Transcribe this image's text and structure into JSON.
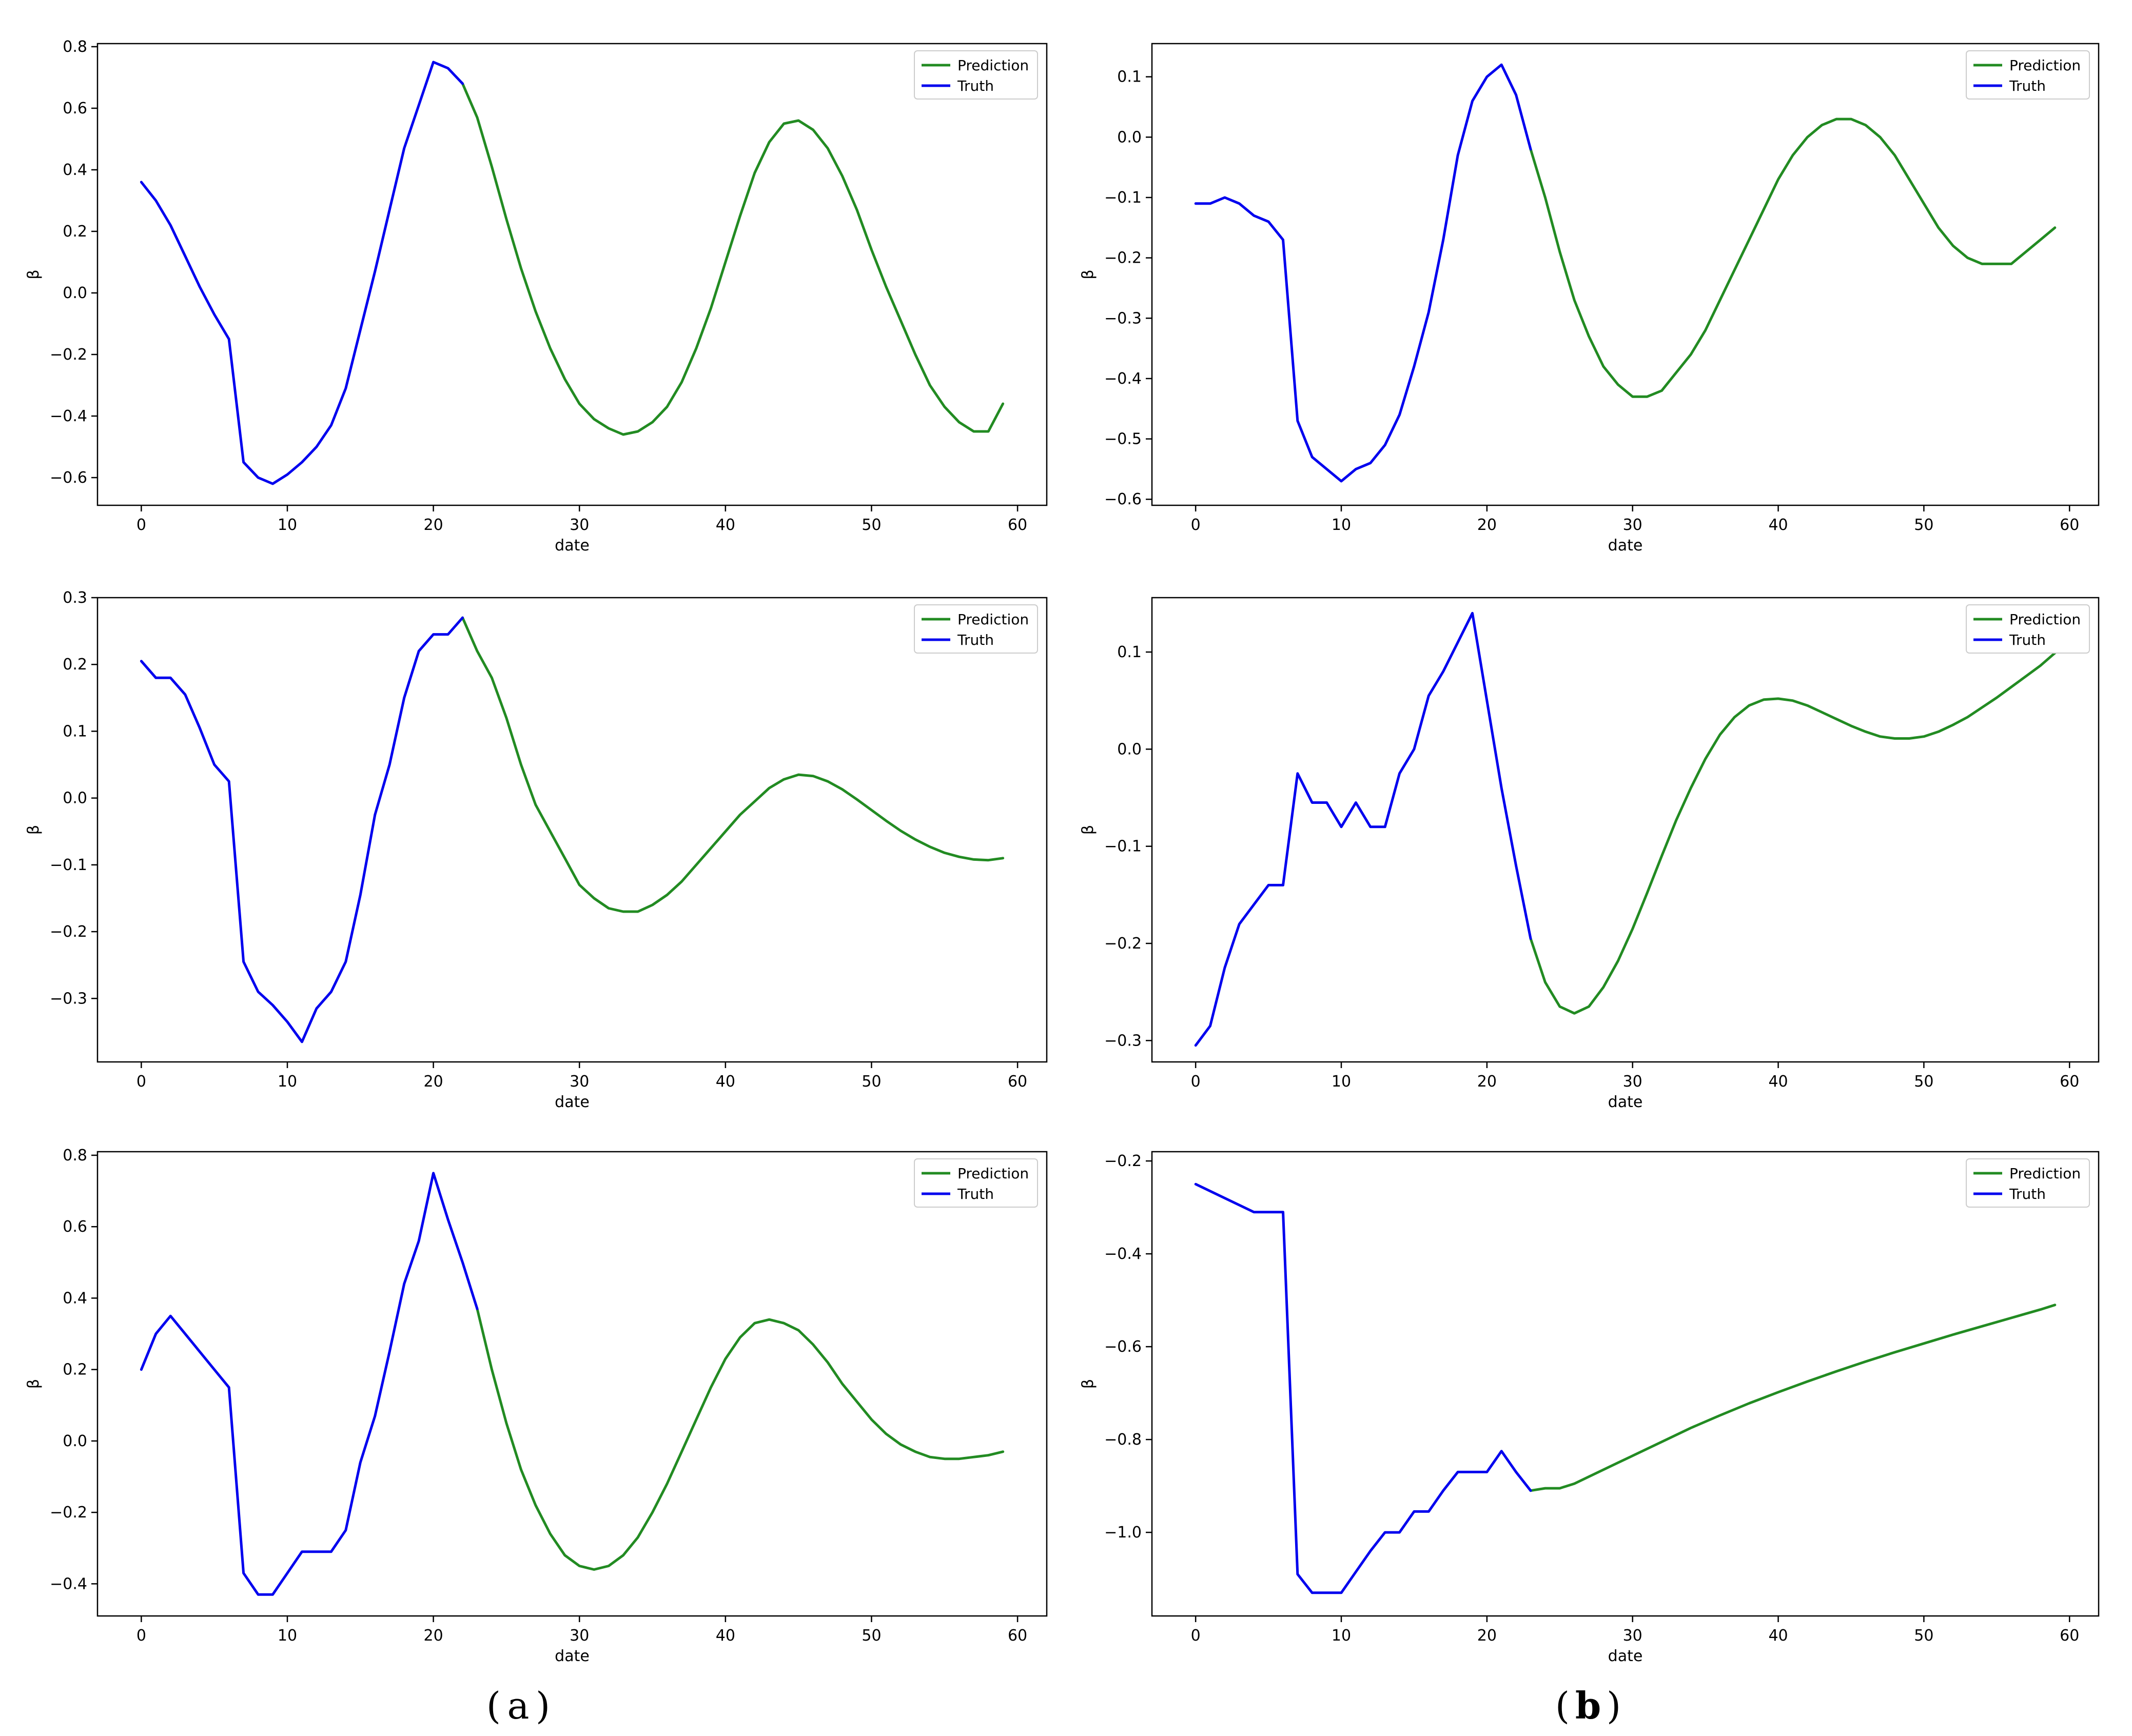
{
  "figure_labels": {
    "a": "a",
    "b": "b"
  },
  "colors": {
    "prediction": "#228b22",
    "truth": "#0000ee",
    "axis": "#000000",
    "background": "#ffffff"
  },
  "chart_data": [
    {
      "type": "line",
      "column": "a",
      "row": 0,
      "xlabel": "date",
      "ylabel": "β",
      "xlim": [
        -3,
        62
      ],
      "ylim": [
        -0.69,
        0.81
      ],
      "xticks": [
        0,
        10,
        20,
        30,
        40,
        50,
        60
      ],
      "xtick_labels": [
        "0",
        "10",
        "20",
        "30",
        "40",
        "50",
        "60"
      ],
      "yticks": [
        -0.6,
        -0.4,
        -0.2,
        0.0,
        0.2,
        0.4,
        0.6,
        0.8
      ],
      "ytick_labels": [
        "−0.6",
        "−0.4",
        "−0.2",
        "0.0",
        "0.2",
        "0.4",
        "0.6",
        "0.8"
      ],
      "legend": "top-right",
      "series": [
        {
          "name": "Prediction",
          "color": "#228b22",
          "x": [
            22,
            23,
            24,
            25,
            26,
            27,
            28,
            29,
            30,
            31,
            32,
            33,
            34,
            35,
            36,
            37,
            38,
            39,
            40,
            41,
            42,
            43,
            44,
            45,
            46,
            47,
            48,
            49,
            50,
            51,
            52,
            53,
            54,
            55,
            56,
            57,
            58,
            59
          ],
          "y": [
            0.68,
            0.57,
            0.41,
            0.24,
            0.08,
            -0.06,
            -0.18,
            -0.28,
            -0.36,
            -0.41,
            -0.44,
            -0.46,
            -0.45,
            -0.42,
            -0.37,
            -0.29,
            -0.18,
            -0.05,
            0.1,
            0.25,
            0.39,
            0.49,
            0.55,
            0.56,
            0.53,
            0.47,
            0.38,
            0.27,
            0.14,
            0.02,
            -0.09,
            -0.2,
            -0.3,
            -0.37,
            -0.42,
            -0.45,
            -0.45,
            -0.36
          ]
        },
        {
          "name": "Truth",
          "color": "#0000ee",
          "x": [
            0,
            1,
            2,
            3,
            4,
            5,
            6,
            7,
            8,
            9,
            10,
            11,
            12,
            13,
            14,
            15,
            16,
            17,
            18,
            19,
            20,
            21,
            22
          ],
          "y": [
            0.36,
            0.3,
            0.22,
            0.12,
            0.02,
            -0.07,
            -0.15,
            -0.55,
            -0.6,
            -0.62,
            -0.59,
            -0.55,
            -0.5,
            -0.43,
            -0.31,
            -0.12,
            0.07,
            0.27,
            0.47,
            0.61,
            0.75,
            0.73,
            0.68
          ]
        }
      ]
    },
    {
      "type": "line",
      "column": "b",
      "row": 0,
      "xlabel": "date",
      "ylabel": "β",
      "xlim": [
        -3,
        62
      ],
      "ylim": [
        -0.61,
        0.155
      ],
      "xticks": [
        0,
        10,
        20,
        30,
        40,
        50,
        60
      ],
      "xtick_labels": [
        "0",
        "10",
        "20",
        "30",
        "40",
        "50",
        "60"
      ],
      "yticks": [
        -0.6,
        -0.5,
        -0.4,
        -0.3,
        -0.2,
        -0.1,
        0.0,
        0.1
      ],
      "ytick_labels": [
        "−0.6",
        "−0.5",
        "−0.4",
        "−0.3",
        "−0.2",
        "−0.1",
        "0.0",
        "0.1"
      ],
      "legend": "top-right",
      "series": [
        {
          "name": "Prediction",
          "color": "#228b22",
          "x": [
            23,
            24,
            25,
            26,
            27,
            28,
            29,
            30,
            31,
            32,
            33,
            34,
            35,
            36,
            37,
            38,
            39,
            40,
            41,
            42,
            43,
            44,
            45,
            46,
            47,
            48,
            49,
            50,
            51,
            52,
            53,
            54,
            55,
            56,
            57,
            58,
            59
          ],
          "y": [
            -0.02,
            -0.1,
            -0.19,
            -0.27,
            -0.33,
            -0.38,
            -0.41,
            -0.43,
            -0.43,
            -0.42,
            -0.39,
            -0.36,
            -0.32,
            -0.27,
            -0.22,
            -0.17,
            -0.12,
            -0.07,
            -0.03,
            0.0,
            0.02,
            0.03,
            0.03,
            0.02,
            0.0,
            -0.03,
            -0.07,
            -0.11,
            -0.15,
            -0.18,
            -0.2,
            -0.21,
            -0.21,
            -0.21,
            -0.19,
            -0.17,
            -0.15
          ]
        },
        {
          "name": "Truth",
          "color": "#0000ee",
          "x": [
            0,
            1,
            2,
            3,
            4,
            5,
            6,
            7,
            8,
            9,
            10,
            11,
            12,
            13,
            14,
            15,
            16,
            17,
            18,
            19,
            20,
            21,
            22,
            23
          ],
          "y": [
            -0.11,
            -0.11,
            -0.1,
            -0.11,
            -0.13,
            -0.14,
            -0.17,
            -0.47,
            -0.53,
            -0.55,
            -0.57,
            -0.55,
            -0.54,
            -0.51,
            -0.46,
            -0.38,
            -0.29,
            -0.17,
            -0.03,
            0.06,
            0.1,
            0.12,
            0.07,
            -0.02
          ]
        }
      ]
    },
    {
      "type": "line",
      "column": "a",
      "row": 1,
      "xlabel": "date",
      "ylabel": "β",
      "xlim": [
        -3,
        62
      ],
      "ylim": [
        -0.395,
        0.3
      ],
      "xticks": [
        0,
        10,
        20,
        30,
        40,
        50,
        60
      ],
      "xtick_labels": [
        "0",
        "10",
        "20",
        "30",
        "40",
        "50",
        "60"
      ],
      "yticks": [
        -0.3,
        -0.2,
        -0.1,
        0.0,
        0.1,
        0.2,
        0.3
      ],
      "ytick_labels": [
        "−0.3",
        "−0.2",
        "−0.1",
        "0.0",
        "0.1",
        "0.2",
        "0.3"
      ],
      "legend": "top-right",
      "series": [
        {
          "name": "Prediction",
          "color": "#228b22",
          "x": [
            22,
            23,
            24,
            25,
            26,
            27,
            28,
            29,
            30,
            31,
            32,
            33,
            34,
            35,
            36,
            37,
            38,
            39,
            40,
            41,
            42,
            43,
            44,
            45,
            46,
            47,
            48,
            49,
            50,
            51,
            52,
            53,
            54,
            55,
            56,
            57,
            58,
            59
          ],
          "y": [
            0.27,
            0.22,
            0.18,
            0.12,
            0.05,
            -0.01,
            -0.05,
            -0.09,
            -0.13,
            -0.15,
            -0.165,
            -0.17,
            -0.17,
            -0.16,
            -0.145,
            -0.125,
            -0.1,
            -0.075,
            -0.05,
            -0.025,
            -0.005,
            0.015,
            0.028,
            0.035,
            0.033,
            0.025,
            0.013,
            -0.002,
            -0.018,
            -0.034,
            -0.049,
            -0.062,
            -0.073,
            -0.082,
            -0.088,
            -0.092,
            -0.093,
            -0.09
          ]
        },
        {
          "name": "Truth",
          "color": "#0000ee",
          "x": [
            0,
            1,
            2,
            3,
            4,
            5,
            6,
            7,
            8,
            9,
            10,
            11,
            12,
            13,
            14,
            15,
            16,
            17,
            18,
            19,
            20,
            21,
            22
          ],
          "y": [
            0.205,
            0.18,
            0.18,
            0.155,
            0.105,
            0.05,
            0.025,
            -0.245,
            -0.29,
            -0.31,
            -0.335,
            -0.365,
            -0.315,
            -0.29,
            -0.245,
            -0.145,
            -0.025,
            0.05,
            0.15,
            0.22,
            0.245,
            0.245,
            0.27
          ]
        }
      ]
    },
    {
      "type": "line",
      "column": "b",
      "row": 1,
      "xlabel": "date",
      "ylabel": "β",
      "xlim": [
        -3,
        62
      ],
      "ylim": [
        -0.322,
        0.156
      ],
      "xticks": [
        0,
        10,
        20,
        30,
        40,
        50,
        60
      ],
      "xtick_labels": [
        "0",
        "10",
        "20",
        "30",
        "40",
        "50",
        "60"
      ],
      "yticks": [
        -0.3,
        -0.2,
        -0.1,
        0.0,
        0.1
      ],
      "ytick_labels": [
        "−0.3",
        "−0.2",
        "−0.1",
        "0.0",
        "0.1"
      ],
      "legend": "top-right",
      "series": [
        {
          "name": "Prediction",
          "color": "#228b22",
          "x": [
            23,
            24,
            25,
            26,
            27,
            28,
            29,
            30,
            31,
            32,
            33,
            34,
            35,
            36,
            37,
            38,
            39,
            40,
            41,
            42,
            43,
            44,
            45,
            46,
            47,
            48,
            49,
            50,
            51,
            52,
            53,
            54,
            55,
            56,
            57,
            58,
            59
          ],
          "y": [
            -0.195,
            -0.24,
            -0.265,
            -0.272,
            -0.265,
            -0.245,
            -0.218,
            -0.185,
            -0.148,
            -0.11,
            -0.073,
            -0.04,
            -0.01,
            0.015,
            0.033,
            0.045,
            0.051,
            0.052,
            0.05,
            0.045,
            0.038,
            0.031,
            0.024,
            0.018,
            0.013,
            0.011,
            0.011,
            0.013,
            0.018,
            0.025,
            0.033,
            0.043,
            0.053,
            0.064,
            0.075,
            0.086,
            0.099
          ]
        },
        {
          "name": "Truth",
          "color": "#0000ee",
          "x": [
            0,
            1,
            2,
            3,
            4,
            5,
            6,
            7,
            8,
            9,
            10,
            11,
            12,
            13,
            14,
            15,
            16,
            17,
            18,
            19,
            20,
            21,
            22,
            23
          ],
          "y": [
            -0.305,
            -0.285,
            -0.225,
            -0.18,
            -0.16,
            -0.14,
            -0.14,
            -0.025,
            -0.055,
            -0.055,
            -0.08,
            -0.055,
            -0.08,
            -0.08,
            -0.025,
            0.0,
            0.055,
            0.08,
            0.11,
            0.14,
            0.05,
            -0.04,
            -0.12,
            -0.195
          ]
        }
      ]
    },
    {
      "type": "line",
      "column": "a",
      "row": 2,
      "xlabel": "date",
      "ylabel": "β",
      "xlim": [
        -3,
        62
      ],
      "ylim": [
        -0.49,
        0.81
      ],
      "xticks": [
        0,
        10,
        20,
        30,
        40,
        50,
        60
      ],
      "xtick_labels": [
        "0",
        "10",
        "20",
        "30",
        "40",
        "50",
        "60"
      ],
      "yticks": [
        -0.4,
        -0.2,
        0.0,
        0.2,
        0.4,
        0.6,
        0.8
      ],
      "ytick_labels": [
        "−0.4",
        "−0.2",
        "0.0",
        "0.2",
        "0.4",
        "0.6",
        "0.8"
      ],
      "legend": "top-right",
      "series": [
        {
          "name": "Prediction",
          "color": "#228b22",
          "x": [
            23,
            24,
            25,
            26,
            27,
            28,
            29,
            30,
            31,
            32,
            33,
            34,
            35,
            36,
            37,
            38,
            39,
            40,
            41,
            42,
            43,
            44,
            45,
            46,
            47,
            48,
            49,
            50,
            51,
            52,
            53,
            54,
            55,
            56,
            57,
            58,
            59
          ],
          "y": [
            0.37,
            0.2,
            0.05,
            -0.08,
            -0.18,
            -0.26,
            -0.32,
            -0.35,
            -0.36,
            -0.35,
            -0.32,
            -0.27,
            -0.2,
            -0.12,
            -0.03,
            0.06,
            0.15,
            0.23,
            0.29,
            0.33,
            0.34,
            0.33,
            0.31,
            0.27,
            0.22,
            0.16,
            0.11,
            0.06,
            0.02,
            -0.01,
            -0.03,
            -0.045,
            -0.05,
            -0.05,
            -0.045,
            -0.04,
            -0.03
          ]
        },
        {
          "name": "Truth",
          "color": "#0000ee",
          "x": [
            0,
            1,
            2,
            3,
            4,
            5,
            6,
            7,
            8,
            9,
            10,
            11,
            12,
            13,
            14,
            15,
            16,
            17,
            18,
            19,
            20,
            21,
            22,
            23
          ],
          "y": [
            0.2,
            0.3,
            0.35,
            0.3,
            0.25,
            0.2,
            0.15,
            -0.37,
            -0.43,
            -0.43,
            -0.37,
            -0.31,
            -0.31,
            -0.31,
            -0.25,
            -0.06,
            0.07,
            0.25,
            0.44,
            0.56,
            0.75,
            0.62,
            0.5,
            0.37
          ]
        }
      ]
    },
    {
      "type": "line",
      "column": "b",
      "row": 2,
      "xlabel": "date",
      "ylabel": "β",
      "xlim": [
        -3,
        62
      ],
      "ylim": [
        -1.18,
        -0.18
      ],
      "xticks": [
        0,
        10,
        20,
        30,
        40,
        50,
        60
      ],
      "xtick_labels": [
        "0",
        "10",
        "20",
        "30",
        "40",
        "50",
        "60"
      ],
      "yticks": [
        -1.0,
        -0.8,
        -0.6,
        -0.4,
        -0.2
      ],
      "ytick_labels": [
        "−1.0",
        "−0.8",
        "−0.6",
        "−0.4",
        "−0.2"
      ],
      "legend": "top-right",
      "series": [
        {
          "name": "Prediction",
          "color": "#228b22",
          "x": [
            23,
            24,
            25,
            26,
            27,
            28,
            29,
            30,
            32,
            34,
            36,
            38,
            40,
            42,
            44,
            46,
            48,
            50,
            52,
            54,
            56,
            58,
            59
          ],
          "y": [
            -0.91,
            -0.905,
            -0.905,
            -0.895,
            -0.88,
            -0.865,
            -0.85,
            -0.835,
            -0.805,
            -0.775,
            -0.748,
            -0.722,
            -0.698,
            -0.675,
            -0.653,
            -0.632,
            -0.612,
            -0.593,
            -0.574,
            -0.556,
            -0.538,
            -0.52,
            -0.51
          ]
        },
        {
          "name": "Truth",
          "color": "#0000ee",
          "x": [
            0,
            2,
            4,
            5,
            6,
            7,
            8,
            9,
            10,
            11,
            12,
            13,
            14,
            15,
            16,
            17,
            18,
            19,
            20,
            21,
            22,
            23
          ],
          "y": [
            -0.25,
            -0.28,
            -0.31,
            -0.31,
            -0.31,
            -1.09,
            -1.13,
            -1.13,
            -1.13,
            -1.085,
            -1.04,
            -1.0,
            -1.0,
            -0.955,
            -0.955,
            -0.91,
            -0.87,
            -0.87,
            -0.87,
            -0.825,
            -0.87,
            -0.91
          ]
        }
      ]
    }
  ]
}
